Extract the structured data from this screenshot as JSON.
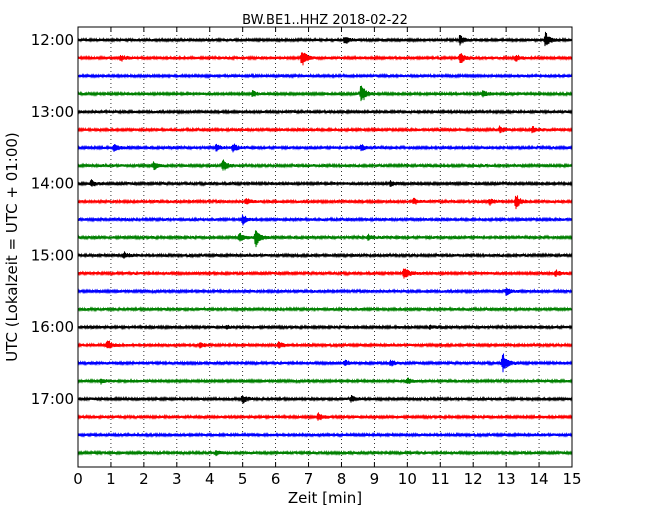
{
  "chart_data": {
    "type": "line",
    "chart_kind": "helicorder",
    "title": "BW.BE1..HHZ 2018-02-22",
    "xlabel": "Zeit  [min]",
    "ylabel": "UTC (Lokalzeit = UTC + 01:00)",
    "xlim": [
      0,
      15
    ],
    "x_ticks": [
      0,
      1,
      2,
      3,
      4,
      5,
      6,
      7,
      8,
      9,
      10,
      11,
      12,
      13,
      14,
      15
    ],
    "x_tick_labels": [
      "0",
      "1",
      "2",
      "3",
      "4",
      "5",
      "6",
      "7",
      "8",
      "9",
      "10",
      "11",
      "12",
      "13",
      "14",
      "15"
    ],
    "y_tick_labels": [
      "12:00",
      "13:00",
      "14:00",
      "15:00",
      "16:00",
      "17:00"
    ],
    "y_tick_rows": [
      0,
      4,
      8,
      12,
      16,
      20
    ],
    "trace_interval_min": 15,
    "start_time": "12:00",
    "vertical_grid": "dotted",
    "colors": [
      "#000000",
      "#ff0000",
      "#0000ff",
      "#008000"
    ],
    "traces": [
      {
        "start": "12:00",
        "color": "#000000",
        "events": [
          {
            "t": 8.1,
            "amp": 4
          },
          {
            "t": 11.6,
            "amp": 5
          },
          {
            "t": 14.2,
            "amp": 8
          }
        ]
      },
      {
        "start": "12:15",
        "color": "#ff0000",
        "events": [
          {
            "t": 1.3,
            "amp": 3
          },
          {
            "t": 6.8,
            "amp": 8
          },
          {
            "t": 11.6,
            "amp": 6
          },
          {
            "t": 13.3,
            "amp": 3
          }
        ]
      },
      {
        "start": "12:30",
        "color": "#0000ff",
        "events": []
      },
      {
        "start": "12:45",
        "color": "#008000",
        "events": [
          {
            "t": 5.3,
            "amp": 3
          },
          {
            "t": 8.6,
            "amp": 10
          },
          {
            "t": 12.3,
            "amp": 3
          }
        ]
      },
      {
        "start": "13:00",
        "color": "#000000",
        "events": []
      },
      {
        "start": "13:15",
        "color": "#ff0000",
        "events": [
          {
            "t": 12.8,
            "amp": 3
          },
          {
            "t": 13.8,
            "amp": 3
          }
        ]
      },
      {
        "start": "13:30",
        "color": "#0000ff",
        "events": [
          {
            "t": 1.1,
            "amp": 4
          },
          {
            "t": 4.2,
            "amp": 3
          },
          {
            "t": 4.7,
            "amp": 4
          },
          {
            "t": 8.6,
            "amp": 3
          }
        ]
      },
      {
        "start": "13:45",
        "color": "#008000",
        "events": [
          {
            "t": 2.3,
            "amp": 4
          },
          {
            "t": 4.4,
            "amp": 6
          }
        ]
      },
      {
        "start": "14:00",
        "color": "#000000",
        "events": [
          {
            "t": 0.4,
            "amp": 3
          },
          {
            "t": 9.5,
            "amp": 3
          }
        ]
      },
      {
        "start": "14:15",
        "color": "#ff0000",
        "events": [
          {
            "t": 5.1,
            "amp": 3
          },
          {
            "t": 10.2,
            "amp": 3
          },
          {
            "t": 12.5,
            "amp": 3
          },
          {
            "t": 13.3,
            "amp": 7
          }
        ]
      },
      {
        "start": "14:30",
        "color": "#0000ff",
        "events": [
          {
            "t": 5.0,
            "amp": 5
          }
        ]
      },
      {
        "start": "14:45",
        "color": "#008000",
        "events": [
          {
            "t": 4.9,
            "amp": 5
          },
          {
            "t": 5.4,
            "amp": 9
          },
          {
            "t": 8.8,
            "amp": 3
          }
        ]
      },
      {
        "start": "15:00",
        "color": "#000000",
        "events": [
          {
            "t": 1.4,
            "amp": 3
          }
        ]
      },
      {
        "start": "15:15",
        "color": "#ff0000",
        "events": [
          {
            "t": 9.9,
            "amp": 7
          },
          {
            "t": 14.5,
            "amp": 3
          }
        ]
      },
      {
        "start": "15:30",
        "color": "#0000ff",
        "events": [
          {
            "t": 13.0,
            "amp": 4
          }
        ]
      },
      {
        "start": "15:45",
        "color": "#008000",
        "events": []
      },
      {
        "start": "16:00",
        "color": "#000000",
        "events": [
          {
            "t": 4.5,
            "amp": 2
          },
          {
            "t": 10.7,
            "amp": 2
          }
        ]
      },
      {
        "start": "16:15",
        "color": "#ff0000",
        "events": [
          {
            "t": 0.9,
            "amp": 5
          },
          {
            "t": 3.7,
            "amp": 3
          },
          {
            "t": 6.1,
            "amp": 3
          }
        ]
      },
      {
        "start": "16:30",
        "color": "#0000ff",
        "events": [
          {
            "t": 8.1,
            "amp": 3
          },
          {
            "t": 9.5,
            "amp": 3
          },
          {
            "t": 12.9,
            "amp": 10
          }
        ]
      },
      {
        "start": "16:45",
        "color": "#008000",
        "events": [
          {
            "t": 0.7,
            "amp": 3
          },
          {
            "t": 10.0,
            "amp": 3
          }
        ]
      },
      {
        "start": "17:00",
        "color": "#000000",
        "events": [
          {
            "t": 5.0,
            "amp": 4
          },
          {
            "t": 8.3,
            "amp": 3
          }
        ]
      },
      {
        "start": "17:15",
        "color": "#ff0000",
        "events": [
          {
            "t": 7.3,
            "amp": 4
          }
        ]
      },
      {
        "start": "17:30",
        "color": "#0000ff",
        "events": []
      },
      {
        "start": "17:45",
        "color": "#008000",
        "events": [
          {
            "t": 4.2,
            "amp": 3
          }
        ]
      }
    ]
  }
}
